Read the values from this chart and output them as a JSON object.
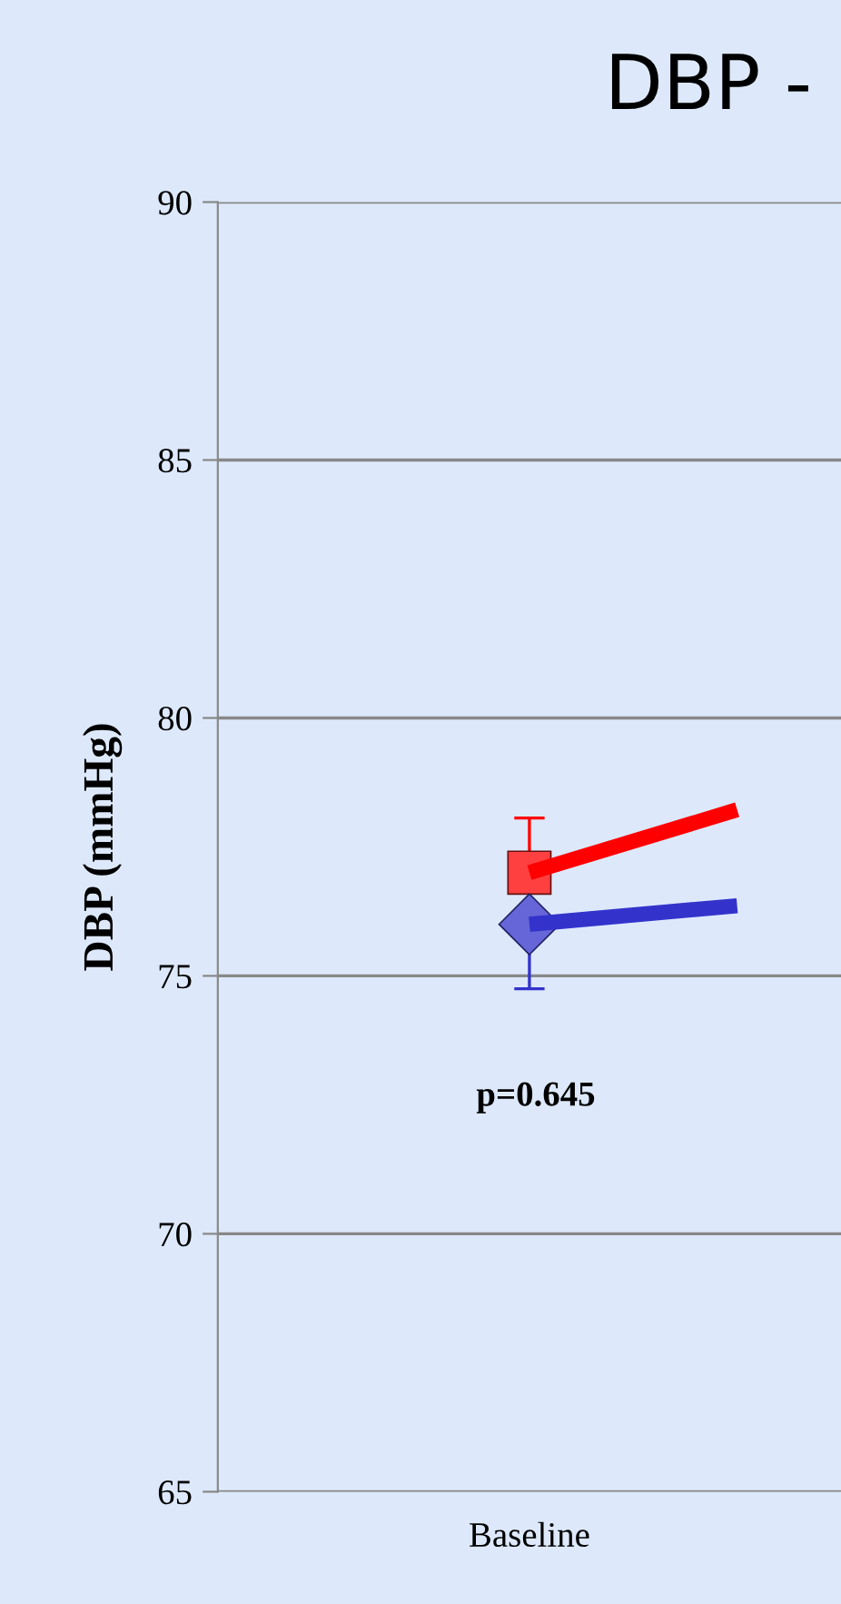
{
  "chart_data": {
    "type": "line",
    "title": "DBP -",
    "ylabel": "DBP (mmHg)",
    "categories": [
      null,
      "Baseline",
      null
    ],
    "series": [
      {
        "color": "#ff0000",
        "values": [
          null,
          77,
          78.22
        ],
        "marker": "square",
        "errors": [
          null,
          [
            77,
            78.06
          ],
          null
        ]
      },
      {
        "color": "#3333cc",
        "values": [
          null,
          76,
          76.36
        ],
        "marker": "diamond",
        "errors": [
          null,
          [
            74.75,
            76
          ],
          null
        ]
      }
    ],
    "annotations": [
      "p=0.645"
    ],
    "ylim": [
      65,
      90
    ],
    "yticks": [
      65,
      70,
      75,
      80,
      85,
      90
    ],
    "grid": "y",
    "line_style": "solid"
  }
}
